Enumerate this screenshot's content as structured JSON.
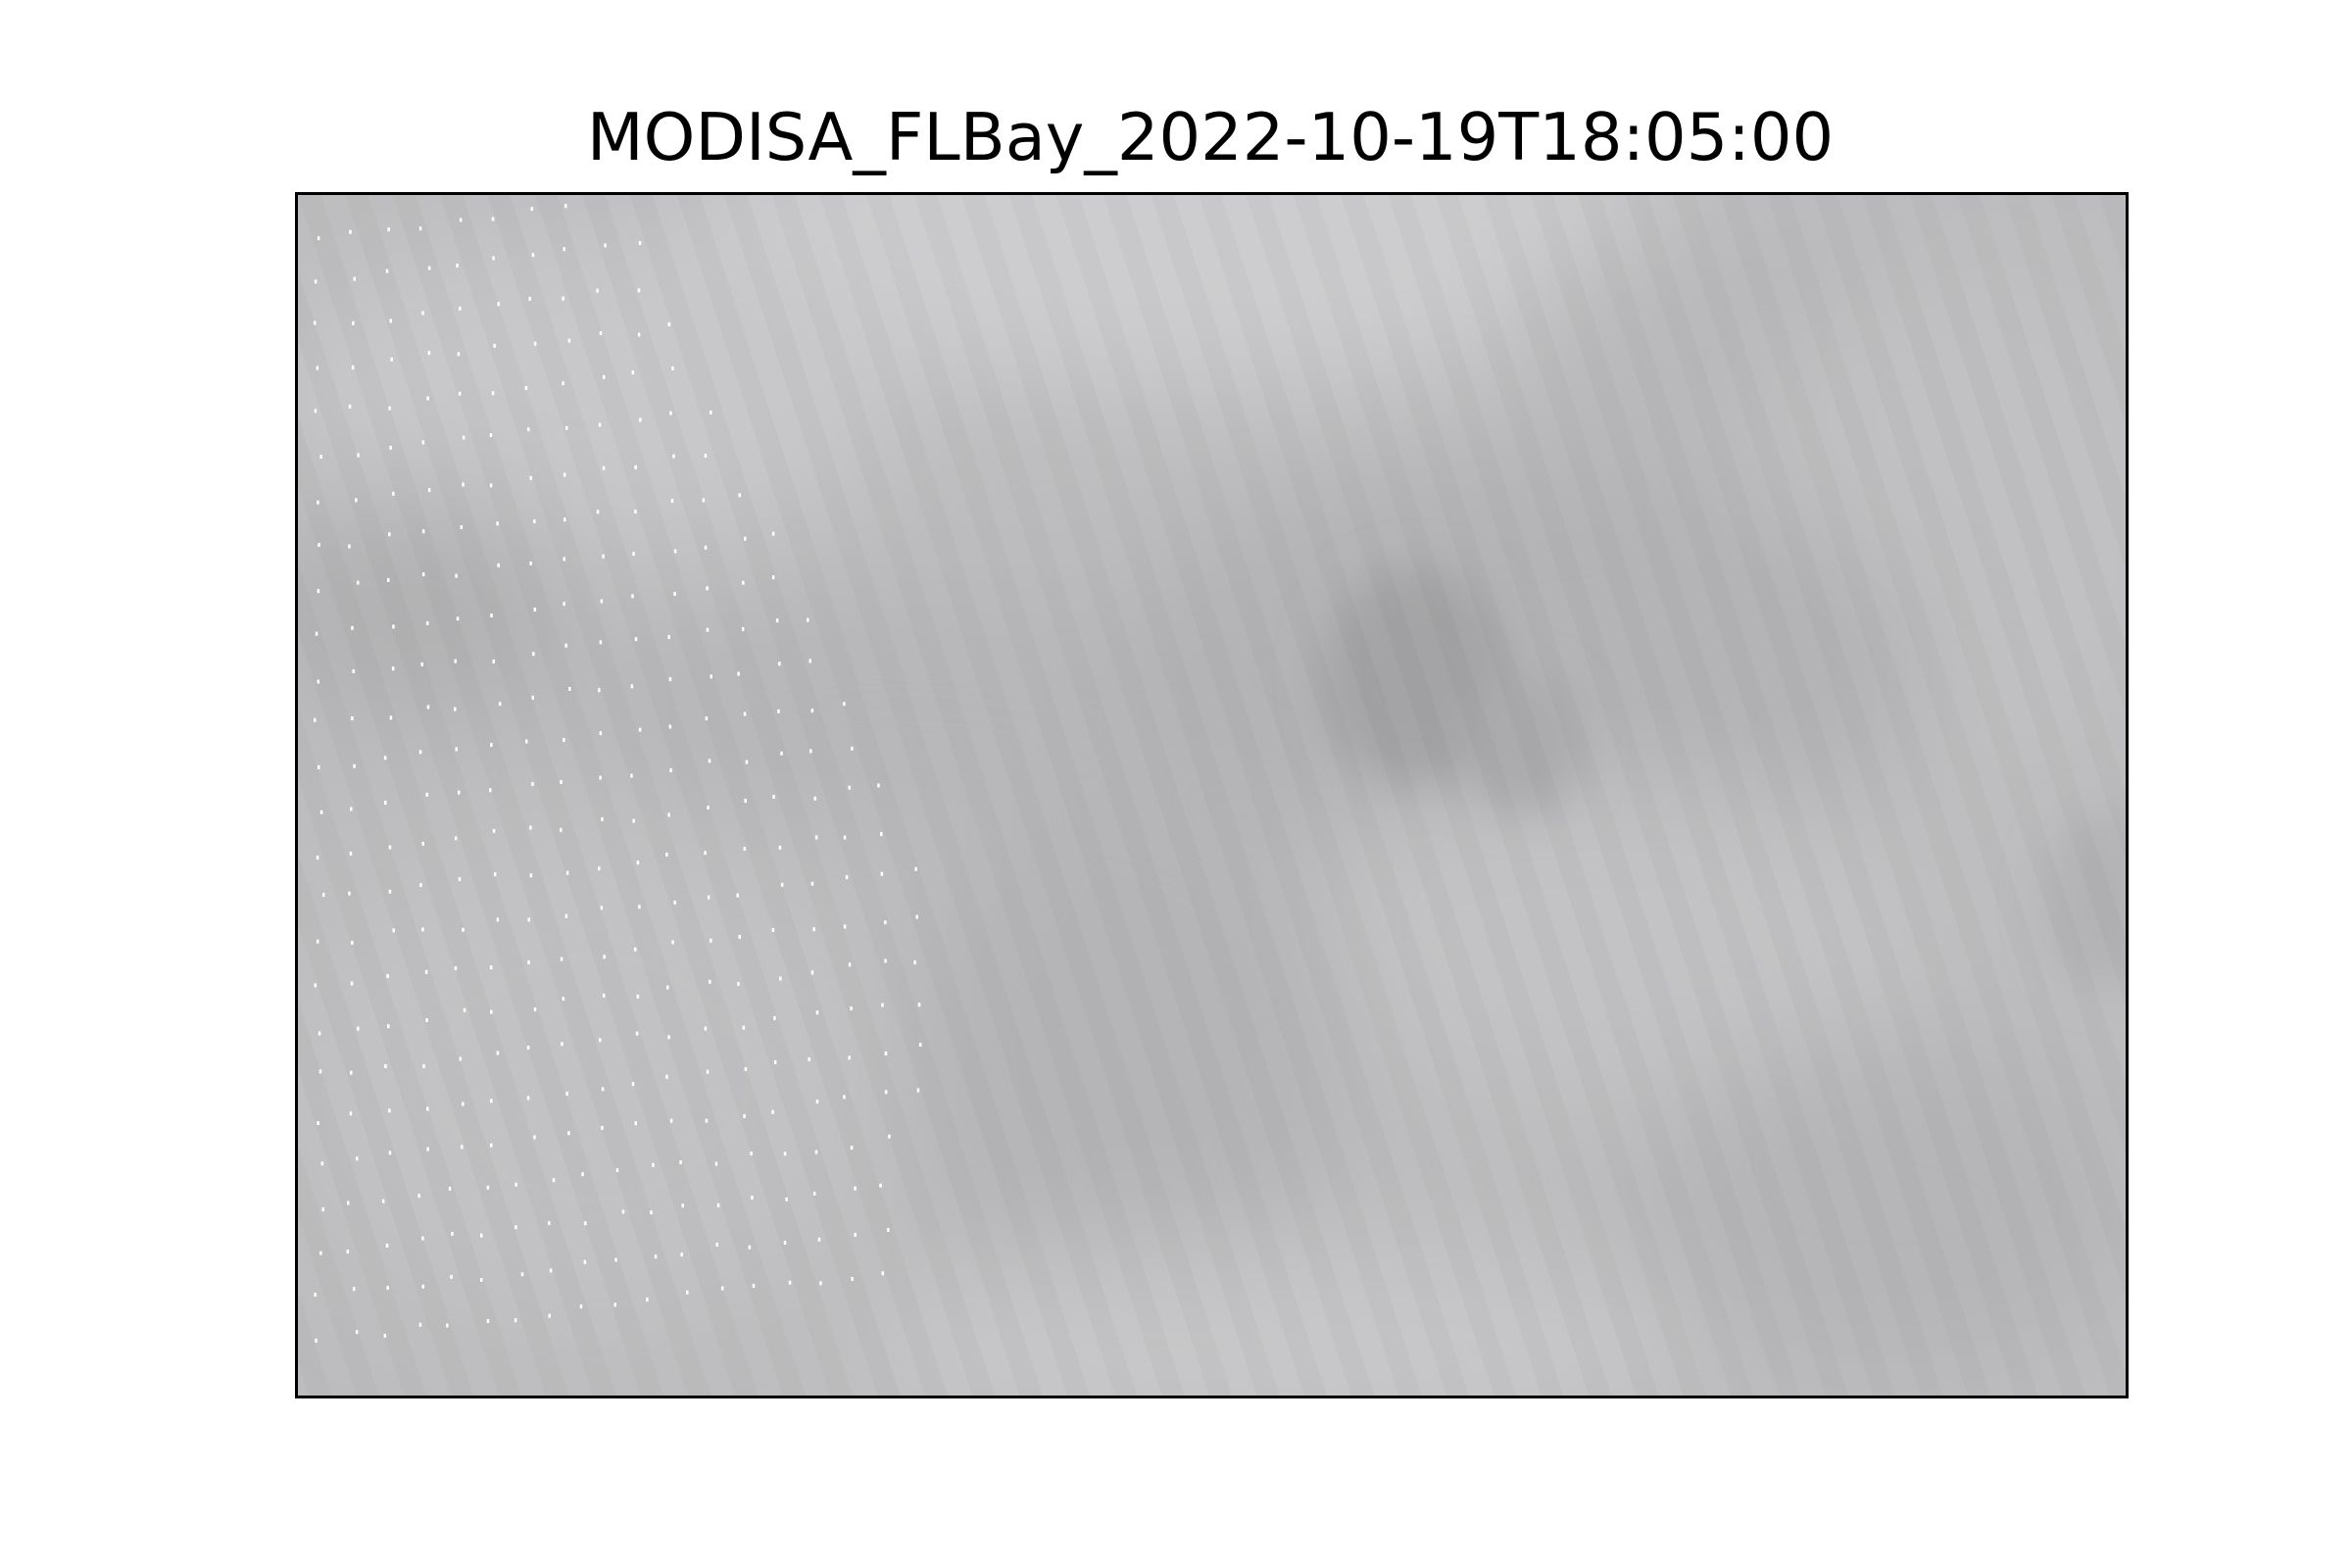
{
  "figure": {
    "title": "MODISA_FLBay_2022-10-19T18:05:00"
  },
  "palette": {
    "base": "#bdbdbf",
    "light": "#cbcbcd",
    "dark": "#a6a6a8",
    "speckle": "#ffffff",
    "frame": "#000000"
  }
}
